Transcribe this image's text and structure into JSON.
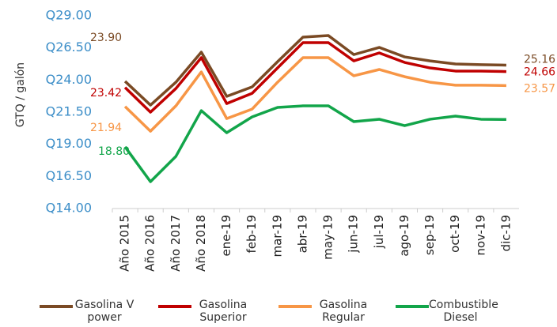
{
  "chart_data": {
    "type": "line",
    "y_label": "GTQ / galón",
    "categories": [
      "Año 2015",
      "Año 2016",
      "Año 2017",
      "Año 2018",
      "ene-19",
      "feb-19",
      "mar-19",
      "abr-19",
      "may-19",
      "jun-19",
      "jul-19",
      "ago-19",
      "sep-19",
      "oct-19",
      "nov-19",
      "dic-19"
    ],
    "ylim": [
      14,
      29
    ],
    "yticks": [
      {
        "value": 14,
        "label": "Q14.00"
      },
      {
        "value": 16.5,
        "label": "Q16.50"
      },
      {
        "value": 19,
        "label": "Q19.00"
      },
      {
        "value": 21.5,
        "label": "Q21.50"
      },
      {
        "value": 24,
        "label": "Q24.00"
      },
      {
        "value": 26.5,
        "label": "Q26.50"
      },
      {
        "value": 29,
        "label": "Q29.00"
      }
    ],
    "grid": false,
    "legend": "bottom",
    "series": [
      {
        "name": "Gasolina V power",
        "color": "#7a4a24",
        "values": [
          23.9,
          22.05,
          23.83,
          26.17,
          22.73,
          23.47,
          25.43,
          27.34,
          27.46,
          25.98,
          26.54,
          25.8,
          25.49,
          25.25,
          25.2,
          25.16
        ],
        "value_labels": [
          "23.90",
          null,
          null,
          null,
          null,
          null,
          null,
          null,
          null,
          null,
          null,
          null,
          null,
          null,
          null,
          "25.16"
        ]
      },
      {
        "name": "Gasolina Superior",
        "color": "#c00000",
        "values": [
          23.42,
          21.5,
          23.34,
          25.74,
          22.17,
          22.97,
          24.94,
          26.91,
          26.91,
          25.49,
          26.11,
          25.37,
          24.94,
          24.7,
          24.7,
          24.66
        ],
        "value_labels": [
          null,
          null,
          null,
          null,
          null,
          null,
          null,
          null,
          null,
          null,
          null,
          null,
          null,
          null,
          null,
          null
        ]
      },
      {
        "name": "Gasolina Regular",
        "color": "#f79646",
        "values": [
          21.94,
          20.02,
          21.99,
          24.63,
          21.0,
          21.74,
          23.83,
          25.74,
          25.74,
          24.33,
          24.82,
          24.26,
          23.83,
          23.6,
          23.6,
          23.57
        ],
        "value_labels": [
          null,
          null,
          null,
          null,
          null,
          null,
          null,
          null,
          null,
          null,
          null,
          null,
          null,
          null,
          null,
          null
        ]
      },
      {
        "name": "Combustible Diesel",
        "color": "#12a54a",
        "values": [
          18.8,
          16.09,
          18.06,
          21.62,
          19.9,
          21.13,
          21.87,
          21.99,
          21.99,
          20.76,
          20.95,
          20.45,
          20.95,
          21.19,
          20.95,
          20.93
        ],
        "value_labels": [
          "18.80",
          null,
          null,
          null,
          null,
          null,
          null,
          null,
          null,
          null,
          null,
          null,
          null,
          null,
          null,
          null
        ]
      }
    ]
  }
}
